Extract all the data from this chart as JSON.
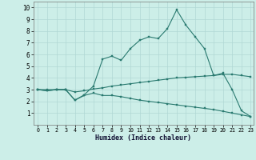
{
  "xlabel": "Humidex (Indice chaleur)",
  "bg_color": "#cceee8",
  "grid_color": "#b0d8d4",
  "line_color": "#2a7a70",
  "xticks": [
    0,
    1,
    2,
    3,
    4,
    5,
    6,
    7,
    8,
    9,
    10,
    11,
    12,
    13,
    14,
    15,
    16,
    17,
    18,
    19,
    20,
    21,
    22,
    23
  ],
  "yticks": [
    1,
    2,
    3,
    4,
    5,
    6,
    7,
    8,
    9,
    10
  ],
  "xlim": [
    -0.5,
    23.3
  ],
  "ylim": [
    0.0,
    10.5
  ],
  "line1_x": [
    0,
    1,
    2,
    3,
    4,
    5,
    6,
    7,
    8,
    9,
    10,
    11,
    12,
    13,
    14,
    15,
    16,
    17,
    18,
    19,
    20,
    21,
    22,
    23
  ],
  "line1_y": [
    3.0,
    2.9,
    3.0,
    3.0,
    2.1,
    2.55,
    3.3,
    5.6,
    5.85,
    5.5,
    6.5,
    7.2,
    7.5,
    7.35,
    8.2,
    9.8,
    8.5,
    7.5,
    6.5,
    4.2,
    4.4,
    3.0,
    1.2,
    0.7
  ],
  "line2_x": [
    0,
    1,
    2,
    3,
    4,
    5,
    6,
    7,
    8,
    9,
    10,
    11,
    12,
    13,
    14,
    15,
    16,
    17,
    18,
    19,
    20,
    21,
    22,
    23
  ],
  "line2_y": [
    3.0,
    3.0,
    3.0,
    3.0,
    2.8,
    2.9,
    3.05,
    3.15,
    3.3,
    3.4,
    3.5,
    3.6,
    3.7,
    3.8,
    3.9,
    4.0,
    4.05,
    4.1,
    4.15,
    4.2,
    4.3,
    4.3,
    4.2,
    4.1
  ],
  "line3_x": [
    0,
    1,
    2,
    3,
    4,
    5,
    6,
    7,
    8,
    9,
    10,
    11,
    12,
    13,
    14,
    15,
    16,
    17,
    18,
    19,
    20,
    21,
    22,
    23
  ],
  "line3_y": [
    3.0,
    2.9,
    3.0,
    3.0,
    2.1,
    2.5,
    2.7,
    2.5,
    2.5,
    2.4,
    2.25,
    2.1,
    2.0,
    1.9,
    1.8,
    1.7,
    1.6,
    1.5,
    1.4,
    1.3,
    1.15,
    1.0,
    0.85,
    0.7
  ]
}
